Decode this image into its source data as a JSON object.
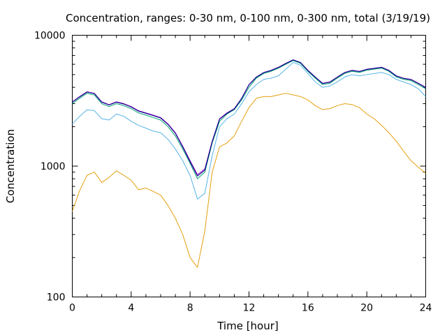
{
  "chart_data": {
    "type": "line",
    "title": "Concentration, ranges: 0-30 nm, 0-100 nm, 0-300 nm, total (3/19/19)",
    "xlabel": "Time [hour]",
    "ylabel": "Concentration",
    "xlim": [
      0,
      24
    ],
    "ylim": [
      100,
      10000
    ],
    "y_scale": "log",
    "x_ticks": [
      0,
      4,
      8,
      12,
      16,
      20,
      24
    ],
    "x_tick_labels": [
      "0",
      "4",
      "8",
      "12",
      "16",
      "20",
      "24"
    ],
    "y_ticks": [
      100,
      1000,
      10000
    ],
    "y_tick_labels": [
      "100",
      "1000",
      "10000"
    ],
    "grid": false,
    "legend": "none",
    "x": [
      0,
      0.5,
      1,
      1.5,
      2,
      2.5,
      3,
      3.5,
      4,
      4.5,
      5,
      5.5,
      6,
      6.5,
      7,
      7.5,
      8,
      8.5,
      9,
      9.5,
      10,
      10.5,
      11,
      11.5,
      12,
      12.5,
      13,
      13.5,
      14,
      14.5,
      15,
      15.5,
      16,
      16.5,
      17,
      17.5,
      18,
      18.5,
      19,
      19.5,
      20,
      20.5,
      21,
      21.5,
      22,
      22.5,
      23,
      23.5,
      24
    ],
    "series": [
      {
        "color": "#e5a010",
        "values": [
          450,
          650,
          850,
          900,
          750,
          820,
          920,
          850,
          780,
          660,
          680,
          640,
          600,
          500,
          400,
          300,
          200,
          168,
          320,
          900,
          1400,
          1500,
          1700,
          2200,
          2800,
          3300,
          3400,
          3400,
          3500,
          3600,
          3500,
          3400,
          3200,
          2900,
          2700,
          2750,
          2900,
          3000,
          2950,
          2800,
          2500,
          2300,
          2050,
          1800,
          1550,
          1300,
          1100,
          980,
          880
        ]
      },
      {
        "color": "#56b4e9",
        "values": [
          2100,
          2400,
          2700,
          2650,
          2300,
          2250,
          2500,
          2400,
          2200,
          2050,
          1950,
          1850,
          1800,
          1600,
          1350,
          1100,
          850,
          560,
          620,
          1200,
          2000,
          2300,
          2500,
          3000,
          3700,
          4200,
          4600,
          4700,
          4900,
          5500,
          6200,
          5900,
          5100,
          4400,
          4000,
          4100,
          4400,
          4800,
          5000,
          4900,
          5000,
          5100,
          5200,
          5000,
          4600,
          4400,
          4200,
          3900,
          3400
        ]
      },
      {
        "color": "#009e73",
        "values": [
          3000,
          3300,
          3600,
          3500,
          3000,
          2850,
          3000,
          2900,
          2750,
          2550,
          2450,
          2350,
          2250,
          2000,
          1700,
          1350,
          1050,
          800,
          900,
          1500,
          2200,
          2500,
          2700,
          3200,
          4000,
          4700,
          5100,
          5300,
          5600,
          6000,
          6400,
          6100,
          5300,
          4700,
          4200,
          4300,
          4700,
          5100,
          5300,
          5200,
          5400,
          5500,
          5600,
          5300,
          4800,
          4600,
          4500,
          4200,
          3900
        ]
      },
      {
        "color": "#9400d3",
        "values": [
          3100,
          3400,
          3700,
          3600,
          3100,
          2950,
          3100,
          3000,
          2850,
          2650,
          2550,
          2450,
          2350,
          2100,
          1800,
          1420,
          1100,
          860,
          950,
          1550,
          2300,
          2550,
          2750,
          3300,
          4200,
          4800,
          5200,
          5400,
          5700,
          6100,
          6500,
          6200,
          5400,
          4800,
          4300,
          4400,
          4800,
          5200,
          5400,
          5300,
          5500,
          5600,
          5700,
          5400,
          4900,
          4700,
          4600,
          4300,
          4000
        ]
      },
      {
        "color": "#000080",
        "values": [
          3080,
          3380,
          3680,
          3580,
          3080,
          2930,
          3080,
          2980,
          2830,
          2630,
          2530,
          2430,
          2330,
          2080,
          1780,
          1400,
          1080,
          840,
          930,
          1530,
          2280,
          2530,
          2730,
          3280,
          4180,
          4780,
          5180,
          5380,
          5680,
          6080,
          6480,
          6180,
          5380,
          4780,
          4280,
          4380,
          4780,
          5180,
          5380,
          5280,
          5480,
          5580,
          5680,
          5380,
          4880,
          4680,
          4580,
          4280,
          3980
        ]
      }
    ]
  }
}
